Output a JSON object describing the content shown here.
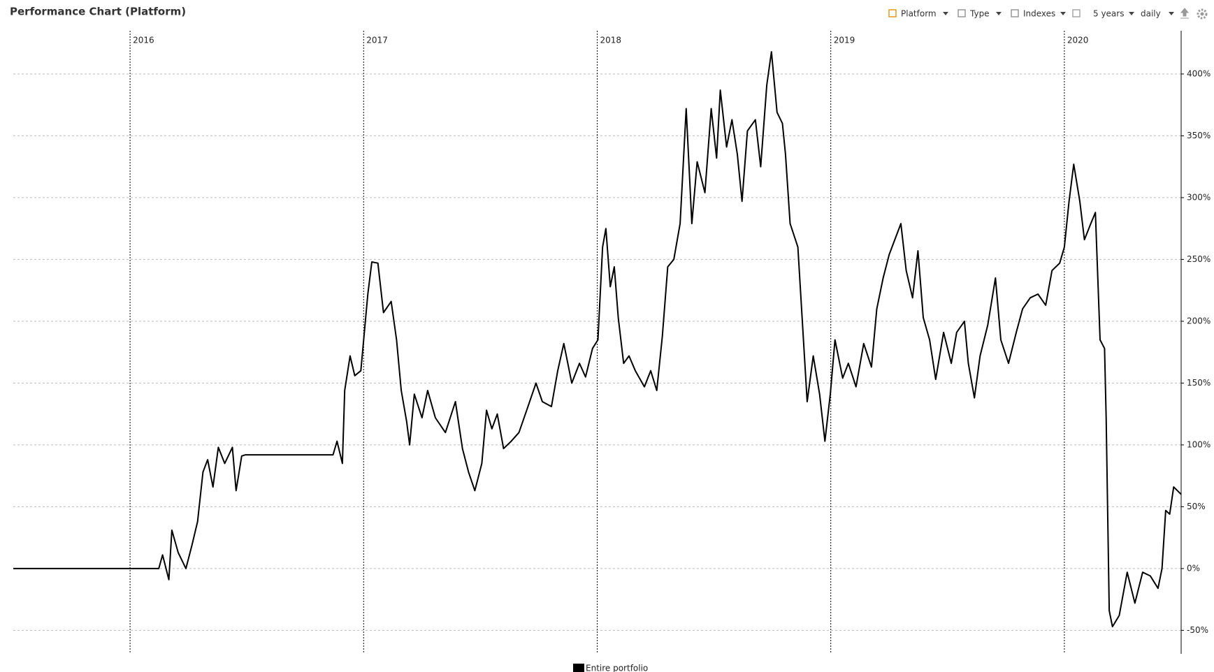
{
  "header": {
    "title": "Performance Chart (Platform)",
    "toolbar": [
      "Platform",
      "Type",
      "Indexes",
      "5 years",
      "daily"
    ]
  },
  "chart_data": {
    "type": "line",
    "x": [
      2015.5,
      2016.123,
      2016.139,
      2016.166,
      2016.179,
      2016.206,
      2016.239,
      2016.265,
      2016.289,
      2016.312,
      2016.332,
      2016.355,
      2016.378,
      2016.405,
      2016.438,
      2016.454,
      2016.478,
      2016.494,
      2016.869,
      2016.886,
      2016.909,
      2016.919,
      2016.942,
      2016.962,
      2016.988,
      2017.018,
      2017.035,
      2017.061,
      2017.085,
      2017.118,
      2017.141,
      2017.161,
      2017.184,
      2017.197,
      2017.217,
      2017.25,
      2017.274,
      2017.307,
      2017.35,
      2017.393,
      2017.423,
      2017.449,
      2017.476,
      2017.506,
      2017.526,
      2017.549,
      2017.572,
      2017.599,
      2017.632,
      2017.665,
      2017.698,
      2017.738,
      2017.765,
      2017.804,
      2017.831,
      2017.857,
      2017.891,
      2017.924,
      2017.95,
      2017.98,
      2018.003,
      2018.023,
      2018.037,
      2018.056,
      2018.073,
      2018.09,
      2018.113,
      2018.136,
      2018.163,
      2018.202,
      2018.229,
      2018.255,
      2018.279,
      2018.302,
      2018.328,
      2018.355,
      2018.381,
      2018.405,
      2018.428,
      2018.461,
      2018.488,
      2018.511,
      2018.527,
      2018.554,
      2018.577,
      2018.6,
      2018.62,
      2018.643,
      2018.677,
      2018.7,
      2018.726,
      2018.746,
      2018.77,
      2018.793,
      2018.806,
      2018.826,
      2018.859,
      2018.879,
      2018.899,
      2018.925,
      2018.952,
      2018.975,
      2018.998,
      2019.018,
      2019.051,
      2019.075,
      2019.108,
      2019.141,
      2019.174,
      2019.197,
      2019.224,
      2019.25,
      2019.274,
      2019.3,
      2019.323,
      2019.35,
      2019.373,
      2019.396,
      2019.423,
      2019.449,
      2019.483,
      2019.516,
      2019.539,
      2019.572,
      2019.589,
      2019.615,
      2019.639,
      2019.672,
      2019.705,
      2019.728,
      2019.761,
      2019.794,
      2019.821,
      2019.854,
      2019.887,
      2019.92,
      2019.947,
      2019.98,
      2020,
      2020.02,
      2020.04,
      2020.066,
      2020.086,
      2020.113,
      2020.133,
      2020.153,
      2020.172,
      2020.179,
      2020.192,
      2020.206,
      2020.235,
      2020.269,
      2020.302,
      2020.335,
      2020.368,
      2020.401,
      2020.418,
      2020.434,
      2020.451,
      2020.468,
      2020.5
    ],
    "series": [
      {
        "name": "Entire portfolio",
        "color": "#000000",
        "values": [
          0,
          0,
          11,
          -9,
          31,
          13,
          0,
          19,
          38,
          78,
          88,
          66,
          98,
          85,
          98,
          63,
          91,
          92,
          92,
          103,
          85,
          144,
          172,
          156,
          160,
          222,
          248,
          247,
          207,
          216,
          185,
          144,
          119,
          100,
          141,
          122,
          144,
          122,
          110,
          135,
          97,
          78,
          63,
          85,
          128,
          113,
          125,
          97,
          103,
          110,
          128,
          150,
          135,
          131,
          160,
          182,
          150,
          166,
          155,
          178,
          185,
          260,
          275,
          228,
          244,
          203,
          166,
          172,
          160,
          147,
          160,
          144,
          188,
          244,
          250,
          279,
          372,
          279,
          329,
          304,
          372,
          332,
          387,
          341,
          363,
          335,
          297,
          354,
          363,
          325,
          391,
          418,
          369,
          360,
          335,
          279,
          260,
          197,
          135,
          172,
          141,
          103,
          141,
          185,
          154,
          166,
          147,
          182,
          163,
          210,
          235,
          254,
          266,
          279,
          241,
          219,
          257,
          203,
          185,
          153,
          191,
          166,
          191,
          200,
          166,
          138,
          172,
          197,
          235,
          185,
          166,
          191,
          210,
          219,
          222,
          213,
          241,
          247,
          260,
          297,
          327,
          297,
          266,
          279,
          288,
          185,
          178,
          122,
          -34,
          -47,
          -38,
          -3,
          -28,
          -3,
          -6,
          -16,
          0,
          47,
          44,
          66,
          60
        ]
      }
    ],
    "xlim": [
      2015.5,
      2020.5
    ],
    "xticks": [
      2016,
      2017,
      2018,
      2019,
      2020
    ],
    "ylim": [
      -69,
      435
    ],
    "yticks": [
      {
        "value": -50,
        "label": "-50%"
      },
      {
        "value": 0,
        "label": "0%"
      },
      {
        "value": 50,
        "label": "50%"
      },
      {
        "value": 100,
        "label": "100%"
      },
      {
        "value": 150,
        "label": "150%"
      },
      {
        "value": 200,
        "label": "200%"
      },
      {
        "value": 250,
        "label": "250%"
      },
      {
        "value": 300,
        "label": "300%"
      },
      {
        "value": 350,
        "label": "350%"
      },
      {
        "value": 400,
        "label": "400%"
      }
    ],
    "grid": true
  }
}
